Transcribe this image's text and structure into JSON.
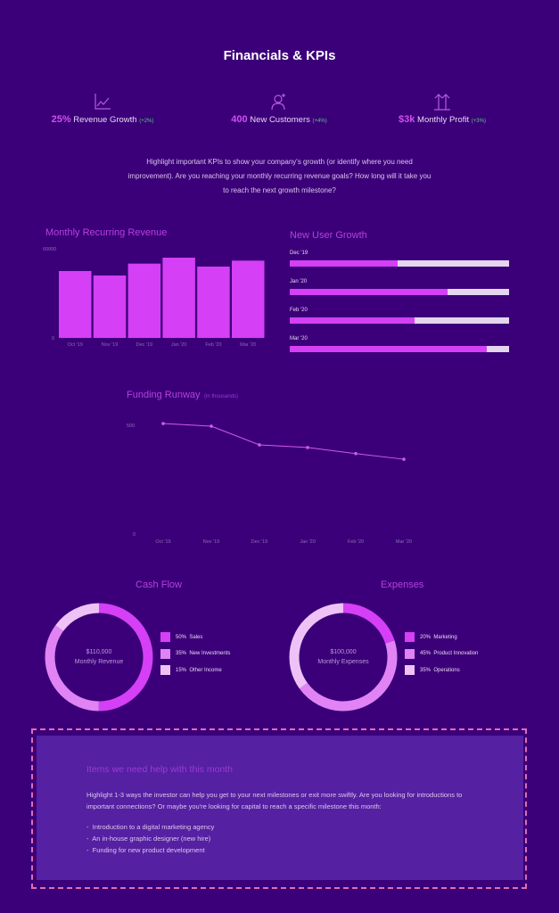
{
  "page": {
    "title": "Financials & KPIs",
    "intro": "Highlight important KPIs to show your company's growth (or identify where you need improvement). Are you reaching your monthly recurring revenue goals? How long will it take you to reach the next growth milestone?"
  },
  "kpis": [
    {
      "icon": "line-chart-icon",
      "value": "25%",
      "label": "Revenue Growth",
      "change": "(+2%)"
    },
    {
      "icon": "add-user-icon",
      "value": "400",
      "label": "New Customers",
      "change": "(+4%)"
    },
    {
      "icon": "double-arrow-up-icon",
      "value": "$3k",
      "label": "Monthly Profit",
      "change": "(+3%)"
    }
  ],
  "colors": {
    "background": "#3b0079",
    "accent": "#d53ff5",
    "track": "#e3d6ee",
    "line": "#cf5af0",
    "positive": "#4fcf7a",
    "dash": "#e06db5"
  },
  "chart_data": [
    {
      "type": "bar",
      "title": "Monthly Recurring Revenue",
      "categories": [
        "Oct '19",
        "Nov '19",
        "Dec '19",
        "Jan '20",
        "Feb '20",
        "Mar '20"
      ],
      "values": [
        45000,
        42000,
        50000,
        54000,
        48000,
        52000
      ],
      "ylim": [
        0,
        60000
      ],
      "yticks": [
        "0",
        "60000"
      ],
      "grid": false
    },
    {
      "type": "bar",
      "orientation": "horizontal",
      "title": "New User Growth",
      "categories": [
        "Dec '19",
        "Jan '20",
        "Feb '20",
        "Mar '20"
      ],
      "values": [
        49,
        72,
        57,
        90
      ],
      "unit": "percent of target"
    },
    {
      "type": "line",
      "title": "Funding Runway",
      "subtitle": "(in thousands)",
      "categories": [
        "Oct '19",
        "Nov '19",
        "Dec '19",
        "Jan '20",
        "Feb '20",
        "Mar '20"
      ],
      "values": [
        508,
        496,
        410,
        398,
        370,
        344
      ],
      "ylim": [
        0,
        500
      ],
      "yticks": [
        "0",
        "500"
      ],
      "grid": false
    },
    {
      "type": "pie",
      "donut": true,
      "title": "Cash Flow",
      "center_value": "$110,000",
      "center_label": "Monthly Revenue",
      "slices": [
        {
          "label": "Sales",
          "value": 50,
          "pct": "50%",
          "color": "#d53ff5"
        },
        {
          "label": "New Investments",
          "value": 35,
          "pct": "35%",
          "color": "#e183f5"
        },
        {
          "label": "Other Income",
          "value": 15,
          "pct": "15%",
          "color": "#efc2f7"
        }
      ],
      "legend": "right"
    },
    {
      "type": "pie",
      "donut": true,
      "title": "Expenses",
      "center_value": "$100,000",
      "center_label": "Monthly Expenses",
      "slices": [
        {
          "label": "Marketing",
          "value": 20,
          "pct": "20%",
          "color": "#d53ff5"
        },
        {
          "label": "Product Innovation",
          "value": 45,
          "pct": "45%",
          "color": "#e183f5"
        },
        {
          "label": "Operations",
          "value": 35,
          "pct": "35%",
          "color": "#efc2f7"
        }
      ],
      "legend": "right"
    }
  ],
  "help": {
    "title": "Items we need help with this month",
    "text": "Highlight 1-3 ways the investor can help you get to your next milestones or exit more swiftly. Are you looking for introductions to important connections? Or maybe you're looking for capital to reach a specific milestone this month:",
    "items": [
      "Introduction to a digital marketing agency",
      "An in-house graphic designer (new hire)",
      "Funding for new product development"
    ]
  }
}
